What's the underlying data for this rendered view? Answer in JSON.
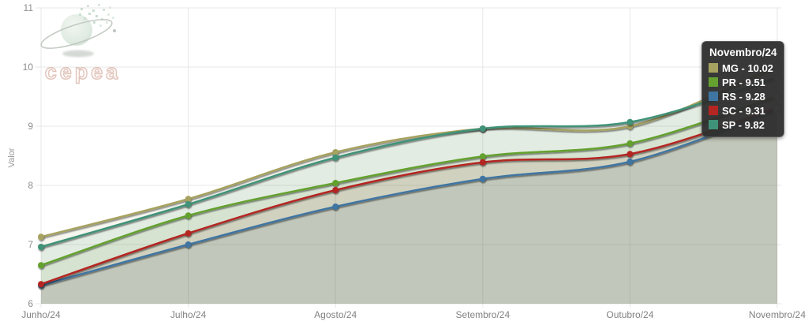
{
  "logo": {
    "wordmark": "cepea"
  },
  "chart_data": {
    "type": "line",
    "title": "",
    "xlabel": "",
    "ylabel": "Valor",
    "ylim": [
      6,
      11
    ],
    "yticks": [
      6,
      7,
      8,
      9,
      10,
      11
    ],
    "categories": [
      "Junho/24",
      "Julho/24",
      "Agosto/24",
      "Setembro/24",
      "Outubro/24",
      "Novembro/24"
    ],
    "grid": true,
    "smooth": true,
    "legend_position": "tooltip-top-right",
    "series": [
      {
        "name": "MG",
        "color": "#a6a25f",
        "values": [
          7.13,
          7.77,
          8.56,
          8.96,
          9.0,
          10.02
        ]
      },
      {
        "name": "PR",
        "color": "#64a12f",
        "values": [
          6.65,
          7.49,
          8.04,
          8.49,
          8.71,
          9.51
        ]
      },
      {
        "name": "RS",
        "color": "#3f75a2",
        "values": [
          6.31,
          7.0,
          7.64,
          8.11,
          8.4,
          9.28
        ]
      },
      {
        "name": "SC",
        "color": "#b32622",
        "values": [
          6.33,
          7.19,
          7.92,
          8.39,
          8.53,
          9.31
        ]
      },
      {
        "name": "SP",
        "color": "#3f9278",
        "values": [
          6.96,
          7.68,
          8.47,
          8.96,
          9.07,
          9.82
        ]
      }
    ],
    "tooltip": {
      "header": "Novembro/24",
      "rows": [
        {
          "series": "MG",
          "label": "MG - 10.02",
          "color": "#a6a25f"
        },
        {
          "series": "PR",
          "label": "PR - 9.51",
          "color": "#64a12f"
        },
        {
          "series": "RS",
          "label": "RS - 9.28",
          "color": "#3f75a2"
        },
        {
          "series": "SC",
          "label": "SC - 9.31",
          "color": "#b32622"
        },
        {
          "series": "SP",
          "label": "SP - 9.82",
          "color": "#3f9278"
        }
      ]
    }
  },
  "theme": {
    "background": "#ffffff",
    "grid_color": "#e7e7e7",
    "tick_text_color": "#8f8f8f",
    "area_opacity": 0.1,
    "line_width": 2.5,
    "tooltip_bg": "#2d2d2d",
    "tooltip_text": "#ffffff",
    "endpoint_fill": "#ffffff",
    "endpoint_stroke": "#c6c6c6"
  }
}
